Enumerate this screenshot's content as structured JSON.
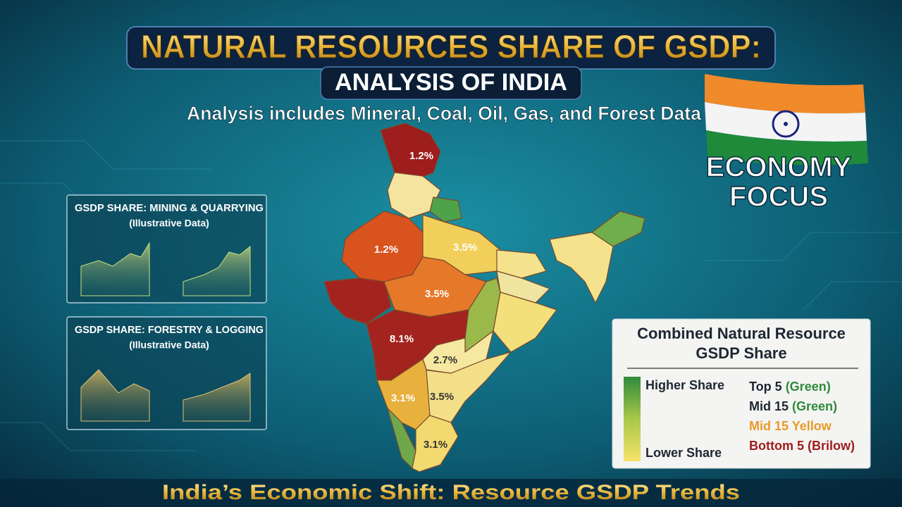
{
  "header": {
    "title": "NATURAL RESOURCES SHARE OF GSDP:",
    "subtitle": "ANALYSIS OF INDIA",
    "tagline": "Analysis includes Mineral, Coal, Oil, Gas, and Forest Data"
  },
  "badge": [
    "ECONOMY",
    "FOCUS"
  ],
  "panels": [
    {
      "title": "GSDP SHARE: MINING & QUARRYING",
      "note": "(Illustrative Data)"
    },
    {
      "title": "GSDP SHARE: FORESTRY & LOGGING",
      "note": "(Illustrative Data)"
    }
  ],
  "map": {
    "labels": [
      "1.2%",
      "1.2%",
      "3.5%",
      "3.5%",
      "8.1%",
      "2.7%",
      "3.1%",
      "3.5%",
      "3.1%"
    ]
  },
  "legend": {
    "title": [
      "Combined Natural Resource",
      "GSDP Share"
    ],
    "high": "Higher Share",
    "low": "Lower Share",
    "items": [
      {
        "text": "Top 5",
        "note": "(Green)"
      },
      {
        "text": "Mid 15",
        "note": "(Green)"
      },
      {
        "text": "Mid 15 Yellow"
      },
      {
        "text": "Bottom 5 (Brilow)"
      }
    ]
  },
  "footer": "India’s Economic Shift: Resource GSDP Trends"
}
